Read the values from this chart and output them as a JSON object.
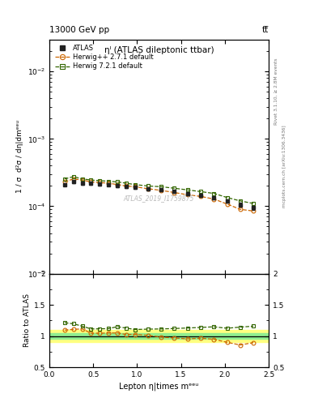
{
  "title_left": "13000 GeV pp",
  "title_right": "tt̅",
  "plot_title": "ηˡ (ATLAS dileptonic ttbar)",
  "right_label_top": "Rivet 3.1.10, ≥ 2.8M events",
  "right_label_bot": "mcplots.cern.ch [arXiv:1306.3436]",
  "watermark": "ATLAS_2019_I1759875",
  "xlabel": "Lepton η|times mᵉᵉᵘ",
  "ylabel_main": "1 / σ  d²σ / dη|dmᵉᵉᵘ",
  "ylabel_ratio": "Ratio to ATLAS",
  "xlim": [
    0,
    2.5
  ],
  "ylim_main": [
    1e-05,
    0.03
  ],
  "ylim_ratio": [
    0.5,
    2.0
  ],
  "atlas_x": [
    0.175,
    0.275,
    0.375,
    0.475,
    0.575,
    0.675,
    0.775,
    0.875,
    0.975,
    1.125,
    1.275,
    1.425,
    1.575,
    1.725,
    1.875,
    2.025,
    2.175,
    2.325
  ],
  "atlas_y": [
    0.00021,
    0.00023,
    0.00022,
    0.00022,
    0.000215,
    0.00021,
    0.0002,
    0.000195,
    0.00019,
    0.00018,
    0.000175,
    0.000165,
    0.000155,
    0.000145,
    0.000135,
    0.00012,
    0.000105,
    9.5e-05
  ],
  "atlas_yerr": [
    1e-05,
    1e-05,
    1e-05,
    1e-05,
    1e-05,
    1e-05,
    1e-05,
    1e-05,
    1e-05,
    8e-06,
    8e-06,
    8e-06,
    8e-06,
    8e-06,
    8e-06,
    7e-06,
    7e-06,
    7e-06
  ],
  "herwig_pp_x": [
    0.175,
    0.275,
    0.375,
    0.475,
    0.575,
    0.675,
    0.775,
    0.875,
    0.975,
    1.125,
    1.275,
    1.425,
    1.575,
    1.725,
    1.875,
    2.025,
    2.175,
    2.325
  ],
  "herwig_pp_y": [
    0.00023,
    0.000255,
    0.000245,
    0.00023,
    0.000225,
    0.00022,
    0.00021,
    0.0002,
    0.000195,
    0.000182,
    0.000172,
    0.00016,
    0.000148,
    0.00014,
    0.000128,
    0.000108,
    9e-05,
    8.5e-05
  ],
  "herwig72_x": [
    0.175,
    0.275,
    0.375,
    0.475,
    0.575,
    0.675,
    0.775,
    0.875,
    0.975,
    1.125,
    1.275,
    1.425,
    1.575,
    1.725,
    1.875,
    2.025,
    2.175,
    2.325
  ],
  "herwig72_y": [
    0.000255,
    0.000275,
    0.000255,
    0.000245,
    0.00024,
    0.000235,
    0.00023,
    0.00022,
    0.00021,
    0.0002,
    0.000195,
    0.000185,
    0.000175,
    0.000165,
    0.000155,
    0.000135,
    0.00012,
    0.00011
  ],
  "herwig_pp_ratio": [
    1.095,
    1.108,
    1.114,
    1.045,
    1.046,
    1.048,
    1.05,
    1.026,
    1.026,
    1.011,
    0.983,
    0.97,
    0.955,
    0.966,
    0.948,
    0.9,
    0.857,
    0.895
  ],
  "herwig72_ratio": [
    1.214,
    1.196,
    1.159,
    1.114,
    1.116,
    1.119,
    1.15,
    1.128,
    1.105,
    1.111,
    1.114,
    1.121,
    1.129,
    1.138,
    1.148,
    1.125,
    1.143,
    1.158
  ],
  "atlas_band_inner": 0.05,
  "atlas_band_outer": 0.1,
  "color_atlas": "#222222",
  "color_herwig_pp": "#cc6600",
  "color_herwig72": "#336600",
  "color_band_inner": "#90ee90",
  "color_band_outer": "#ffff80"
}
